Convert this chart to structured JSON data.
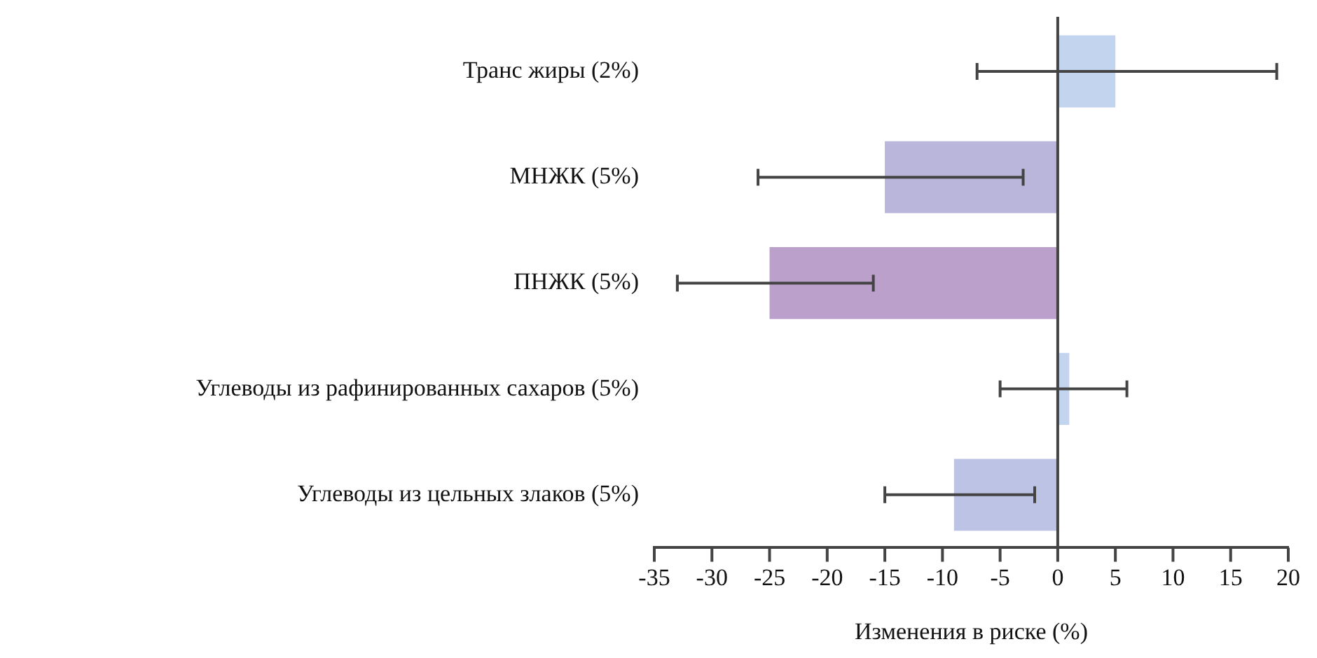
{
  "chart_data": {
    "type": "bar",
    "orientation": "horizontal",
    "xlabel": "Изменения в риске (%)",
    "categories": [
      "Транс жиры (2%)",
      "МНЖК (5%)",
      "ПНЖК (5%)",
      "Углеводы из рафинированных сахаров (5%)",
      "Углеводы из цельных злаков (5%)"
    ],
    "values": [
      5,
      -15,
      -25,
      1,
      -9
    ],
    "errors": [
      [
        -7,
        19
      ],
      [
        -26,
        -3
      ],
      [
        -33,
        -16
      ],
      [
        -5,
        6
      ],
      [
        -15,
        -2
      ]
    ],
    "colors": [
      "#c3d4ee",
      "#bab5da",
      "#bba0cc",
      "#c3d4ee",
      "#bcc3e4"
    ],
    "xlim": [
      -35,
      20
    ],
    "xticks": [
      -35,
      -30,
      -25,
      -20,
      -15,
      -10,
      -5,
      0,
      5,
      10,
      15,
      20
    ],
    "ref_lines": [
      {
        "axis": "x",
        "value": 0,
        "color": "#444444"
      }
    ],
    "grid": false,
    "legend": false
  }
}
